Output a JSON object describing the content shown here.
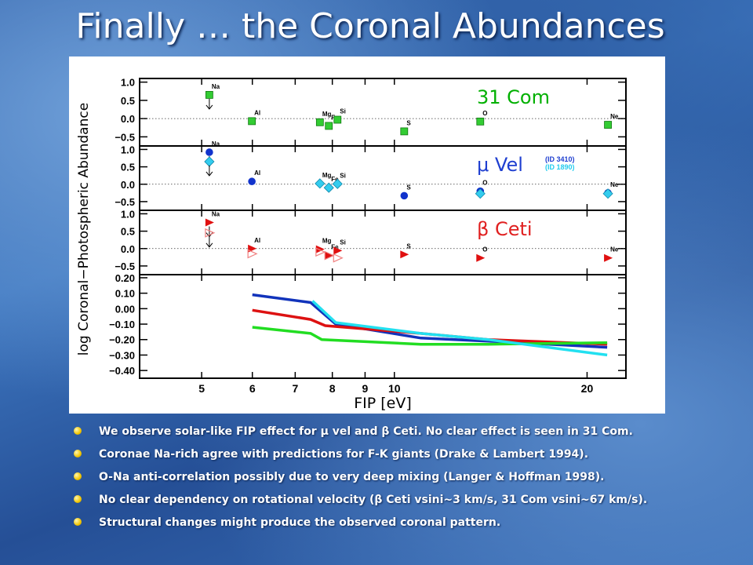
{
  "slide": {
    "title": "Finally … the Coronal Abundances",
    "bullets": [
      "We observe solar-like FIP effect for μ vel and β Ceti. No clear effect is seen in 31 Com.",
      "Coronae Na-rich agree with predictions for F-K giants (Drake & Lambert 1994).",
      "O-Na anti-correlation possibly due to very deep mixing (Langer & Hoffman 1998).",
      "No clear dependency on rotational velocity (β Ceti vsini~3 km/s, 31 Com vsini~67 km/s).",
      "Structural changes might produce the  observed coronal pattern."
    ],
    "bullet_color": "#f2c500"
  },
  "chart_data": {
    "type": "scatter",
    "ylabel": "log Coronal−Photospheric Abundance",
    "xlabel": "FIP [eV]",
    "x_scale": "log",
    "xlim": [
      4,
      23
    ],
    "x_ticks": [
      "5",
      "6",
      "7",
      "8",
      "9",
      "10",
      "20"
    ],
    "x_tick_values": [
      5,
      6,
      7,
      8,
      9,
      10,
      20
    ],
    "element_fip": {
      "Na": 5.14,
      "Al": 5.99,
      "Mg": 7.65,
      "Fe": 7.9,
      "Si": 8.15,
      "S": 10.36,
      "O": 13.62,
      "Ne": 21.56
    },
    "panels": [
      {
        "label": "31 Com",
        "label_color": "#00b000",
        "ylim": [
          -0.75,
          1.1
        ],
        "y_ticks": [
          "1.0",
          "0.5",
          "0.0",
          "−0.5"
        ],
        "y_tick_values": [
          1.0,
          0.5,
          0.0,
          -0.5
        ],
        "series": [
          {
            "marker": "square",
            "color": "#33cc33",
            "upper_limit_element": "Na",
            "points": {
              "Na": 0.65,
              "Al": -0.07,
              "Mg": -0.1,
              "Fe": -0.2,
              "Si": -0.03,
              "S": -0.35,
              "O": -0.08,
              "Ne": -0.17
            }
          }
        ]
      },
      {
        "label": "μ Vel",
        "label_color": "#1f3fd0",
        "legend": [
          "(ID 3410)",
          "(ID 1890)"
        ],
        "legend_colors": [
          "#1f3fd0",
          "#22ccee"
        ],
        "ylim": [
          -0.75,
          1.1
        ],
        "y_ticks": [
          "1.0",
          "0.5",
          "0.0",
          "−0.5"
        ],
        "y_tick_values": [
          1.0,
          0.5,
          0.0,
          -0.5
        ],
        "series": [
          {
            "name": "(ID 3410)",
            "marker": "circle",
            "color": "#1133cc",
            "upper_limit_element": "Na",
            "points": {
              "Na": 0.92,
              "Al": 0.08,
              "S": -0.33,
              "O": -0.2,
              "Ne": -0.25
            }
          },
          {
            "name": "(ID 1890)",
            "marker": "diamond",
            "color": "#33ccee",
            "upper_limit_element": "Na",
            "points": {
              "Na": 0.65,
              "Mg": 0.02,
              "Fe": -0.1,
              "Si": 0.01,
              "O": -0.27,
              "Ne": -0.27
            }
          }
        ]
      },
      {
        "label": "β Ceti",
        "label_color": "#e02020",
        "ylim": [
          -0.75,
          1.1
        ],
        "y_ticks": [
          "1.0",
          "0.5",
          "0.0",
          "−0.5"
        ],
        "y_tick_values": [
          1.0,
          0.5,
          0.0,
          -0.5
        ],
        "series": [
          {
            "marker": "triangle-filled",
            "color": "#e01010",
            "upper_limit_element": "Na",
            "points": {
              "Na": 0.75,
              "Al": 0.0,
              "Mg": -0.02,
              "Fe": -0.2,
              "Si": -0.06,
              "S": -0.17,
              "O": -0.27,
              "Ne": -0.27
            }
          },
          {
            "marker": "triangle-open",
            "color": "#f08080",
            "upper_limit_element": "Na",
            "points": {
              "Na": 0.45,
              "Al": -0.15,
              "Mg": -0.1,
              "Fe": -0.2,
              "Si": -0.27
            }
          }
        ]
      },
      {
        "label": "",
        "ylim": [
          -0.45,
          0.22
        ],
        "y_ticks": [
          "0.20",
          "0.10",
          "0.00",
          "−0.10",
          "−0.20",
          "−0.30",
          "−0.40"
        ],
        "y_tick_values": [
          0.2,
          0.1,
          0.0,
          -0.1,
          -0.2,
          -0.3,
          -0.4
        ],
        "lines": [
          {
            "color": "#1133bb",
            "points": [
              [
                6.0,
                0.09
              ],
              [
                7.4,
                0.04
              ],
              [
                8.1,
                -0.1
              ],
              [
                11.0,
                -0.19
              ],
              [
                14.0,
                -0.21
              ],
              [
                21.5,
                -0.25
              ]
            ]
          },
          {
            "color": "#dd1111",
            "points": [
              [
                6.0,
                -0.01
              ],
              [
                7.4,
                -0.07
              ],
              [
                7.8,
                -0.11
              ],
              [
                11.0,
                -0.16
              ],
              [
                14.0,
                -0.2
              ],
              [
                21.5,
                -0.23
              ]
            ]
          },
          {
            "color": "#22dd22",
            "points": [
              [
                6.0,
                -0.12
              ],
              [
                7.4,
                -0.16
              ],
              [
                7.7,
                -0.2
              ],
              [
                11.0,
                -0.23
              ],
              [
                14.0,
                -0.23
              ],
              [
                21.5,
                -0.22
              ]
            ]
          },
          {
            "color": "#22e0f0",
            "points": [
              [
                7.45,
                0.05
              ],
              [
                8.1,
                -0.09
              ],
              [
                11.0,
                -0.16
              ],
              [
                14.0,
                -0.2
              ],
              [
                21.5,
                -0.3
              ]
            ]
          }
        ]
      }
    ]
  }
}
